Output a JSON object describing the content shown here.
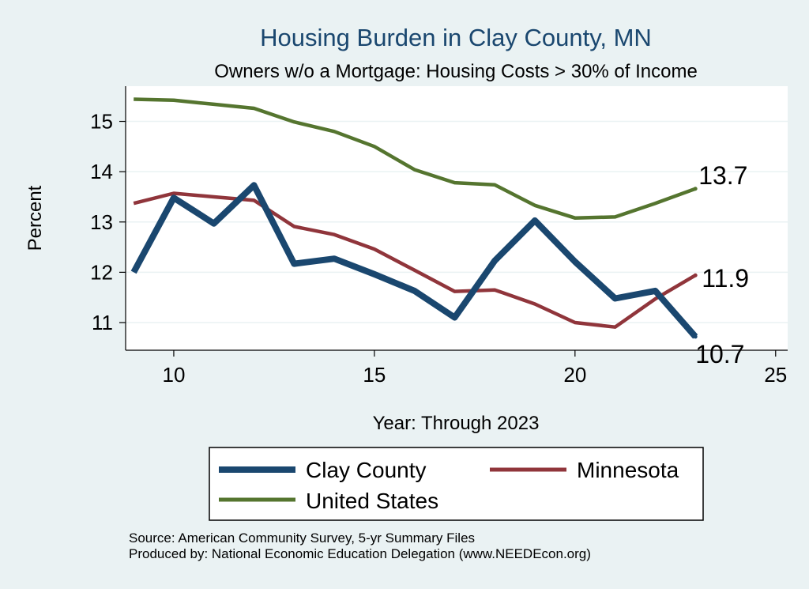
{
  "chart_data": {
    "type": "line",
    "title": "Housing Burden in Clay County, MN",
    "subtitle": "Owners w/o a Mortgage: Housing Costs > 30% of Income",
    "xlabel": "Year: Through 2023",
    "ylabel": "Percent",
    "xlim": [
      8.8,
      25.3
    ],
    "ylim": [
      10.45,
      15.7
    ],
    "xticks": [
      "10",
      "15",
      "20",
      "25"
    ],
    "yticks": [
      "11",
      "12",
      "13",
      "14",
      "15"
    ],
    "grid": true,
    "legend_position": "bottom",
    "x": [
      9,
      10,
      11,
      12,
      13,
      14,
      15,
      16,
      17,
      18,
      19,
      20,
      21,
      22,
      23
    ],
    "series": [
      {
        "name": "Clay County",
        "color": "#1a476f",
        "values": [
          12.0,
          13.48,
          12.97,
          13.73,
          12.17,
          12.27,
          11.96,
          11.63,
          11.1,
          12.23,
          13.03,
          12.21,
          11.48,
          11.63,
          10.72
        ],
        "end_label": "10.7"
      },
      {
        "name": "Minnesota",
        "color": "#90353b",
        "values": [
          13.37,
          13.57,
          13.5,
          13.43,
          12.91,
          12.75,
          12.46,
          12.04,
          11.62,
          11.65,
          11.37,
          11.0,
          10.91,
          11.47,
          11.94
        ],
        "end_label": "11.9"
      },
      {
        "name": "United States",
        "color": "#55752f",
        "values": [
          15.44,
          15.42,
          15.34,
          15.26,
          14.99,
          14.8,
          14.5,
          14.04,
          13.78,
          13.74,
          13.33,
          13.08,
          13.1,
          13.37,
          13.66
        ],
        "end_label": "13.7"
      }
    ]
  },
  "source": "Source: American Community Survey, 5-yr Summary Files",
  "produced_by": "Produced by: National Economic Education Delegation (www.NEEDEcon.org)"
}
